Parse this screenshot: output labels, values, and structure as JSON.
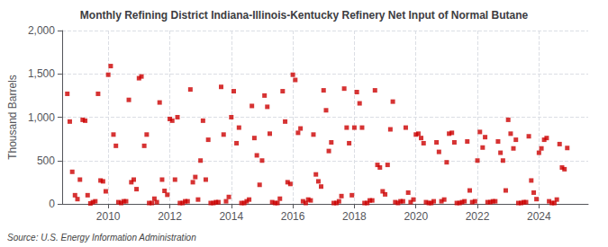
{
  "chart_data": {
    "type": "scatter",
    "title": "Monthly Refining District Indiana-Illinois-Kentucky Refinery Net Input of Normal Butane",
    "ylabel": "Thousand Barrels",
    "annotation": "Source: U.S. Energy Information Administration",
    "color": "#cc0000",
    "marker": "square",
    "grid": true,
    "xlim": [
      2008.5,
      2025.6
    ],
    "xticks": [
      2010,
      2012,
      2014,
      2016,
      2018,
      2020,
      2022,
      2024
    ],
    "ylim": [
      0,
      2000
    ],
    "yticks": [
      0,
      500,
      {
        "value": 1000,
        "label": "1,000"
      },
      {
        "value": 1500,
        "label": "1,500"
      },
      {
        "value": 2000,
        "label": "2,000"
      }
    ],
    "x": [
      2008.67,
      2008.75,
      2008.83,
      2008.92,
      2009.0,
      2009.08,
      2009.17,
      2009.25,
      2009.33,
      2009.42,
      2009.5,
      2009.58,
      2009.67,
      2009.75,
      2009.83,
      2009.92,
      2010.0,
      2010.08,
      2010.17,
      2010.25,
      2010.33,
      2010.42,
      2010.5,
      2010.58,
      2010.67,
      2010.75,
      2010.83,
      2010.92,
      2011.0,
      2011.08,
      2011.17,
      2011.25,
      2011.33,
      2011.42,
      2011.5,
      2011.58,
      2011.67,
      2011.75,
      2011.83,
      2011.92,
      2012.0,
      2012.08,
      2012.17,
      2012.25,
      2012.33,
      2012.42,
      2012.5,
      2012.58,
      2012.67,
      2012.75,
      2012.83,
      2012.92,
      2013.0,
      2013.08,
      2013.17,
      2013.25,
      2013.33,
      2013.42,
      2013.5,
      2013.58,
      2013.67,
      2013.75,
      2013.83,
      2013.92,
      2014.0,
      2014.08,
      2014.17,
      2014.25,
      2014.33,
      2014.42,
      2014.5,
      2014.58,
      2014.67,
      2014.75,
      2014.83,
      2014.92,
      2015.0,
      2015.08,
      2015.17,
      2015.25,
      2015.33,
      2015.42,
      2015.5,
      2015.58,
      2015.67,
      2015.75,
      2015.83,
      2015.92,
      2016.0,
      2016.08,
      2016.17,
      2016.25,
      2016.33,
      2016.42,
      2016.5,
      2016.58,
      2016.67,
      2016.75,
      2016.83,
      2016.92,
      2017.0,
      2017.08,
      2017.17,
      2017.25,
      2017.33,
      2017.42,
      2017.5,
      2017.58,
      2017.67,
      2017.75,
      2017.83,
      2017.92,
      2018.0,
      2018.08,
      2018.17,
      2018.25,
      2018.33,
      2018.42,
      2018.5,
      2018.58,
      2018.67,
      2018.75,
      2018.83,
      2018.92,
      2019.0,
      2019.08,
      2019.17,
      2019.25,
      2019.33,
      2019.42,
      2019.5,
      2019.58,
      2019.67,
      2019.75,
      2019.83,
      2019.92,
      2020.0,
      2020.08,
      2020.17,
      2020.25,
      2020.33,
      2020.42,
      2020.5,
      2020.58,
      2020.67,
      2020.75,
      2020.83,
      2020.92,
      2021.0,
      2021.08,
      2021.17,
      2021.25,
      2021.33,
      2021.42,
      2021.5,
      2021.58,
      2021.67,
      2021.75,
      2021.83,
      2021.92,
      2022.0,
      2022.08,
      2022.17,
      2022.25,
      2022.33,
      2022.42,
      2022.5,
      2022.58,
      2022.67,
      2022.75,
      2022.83,
      2022.92,
      2023.0,
      2023.08,
      2023.17,
      2023.25,
      2023.33,
      2023.42,
      2023.5,
      2023.58,
      2023.67,
      2023.75,
      2023.83,
      2023.92,
      2024.0,
      2024.08,
      2024.17,
      2024.25,
      2024.33,
      2024.42,
      2024.5,
      2024.58,
      2024.67,
      2024.75,
      2024.83,
      2024.92
    ],
    "values": [
      1270,
      950,
      370,
      100,
      55,
      280,
      970,
      960,
      100,
      5,
      20,
      30,
      1270,
      270,
      260,
      145,
      1490,
      1590,
      800,
      670,
      20,
      10,
      30,
      30,
      1200,
      250,
      280,
      170,
      1450,
      1470,
      670,
      800,
      10,
      10,
      60,
      20,
      1170,
      280,
      150,
      105,
      980,
      960,
      280,
      1000,
      10,
      10,
      30,
      30,
      1320,
      250,
      310,
      50,
      500,
      960,
      280,
      740,
      10,
      10,
      20,
      20,
      1350,
      800,
      30,
      80,
      1000,
      1300,
      700,
      880,
      10,
      10,
      30,
      50,
      1130,
      760,
      560,
      220,
      500,
      1250,
      1120,
      810,
      20,
      10,
      10,
      60,
      1300,
      950,
      250,
      230,
      1490,
      1430,
      820,
      870,
      30,
      10,
      50,
      40,
      800,
      340,
      260,
      200,
      1310,
      1080,
      610,
      710,
      10,
      10,
      30,
      90,
      1330,
      880,
      700,
      100,
      880,
      1290,
      1160,
      880,
      10,
      10,
      40,
      40,
      1310,
      450,
      420,
      145,
      110,
      450,
      860,
      1180,
      20,
      10,
      30,
      30,
      880,
      130,
      20,
      50,
      800,
      810,
      760,
      700,
      20,
      10,
      10,
      30,
      710,
      600,
      30,
      50,
      480,
      810,
      820,
      710,
      10,
      10,
      20,
      30,
      720,
      155,
      20,
      30,
      500,
      830,
      650,
      770,
      20,
      20,
      30,
      30,
      720,
      590,
      500,
      155,
      970,
      810,
      640,
      740,
      10,
      10,
      20,
      20,
      780,
      270,
      130,
      55,
      590,
      640,
      740,
      760,
      30,
      10,
      10,
      50,
      690,
      420,
      400,
      645
    ]
  }
}
